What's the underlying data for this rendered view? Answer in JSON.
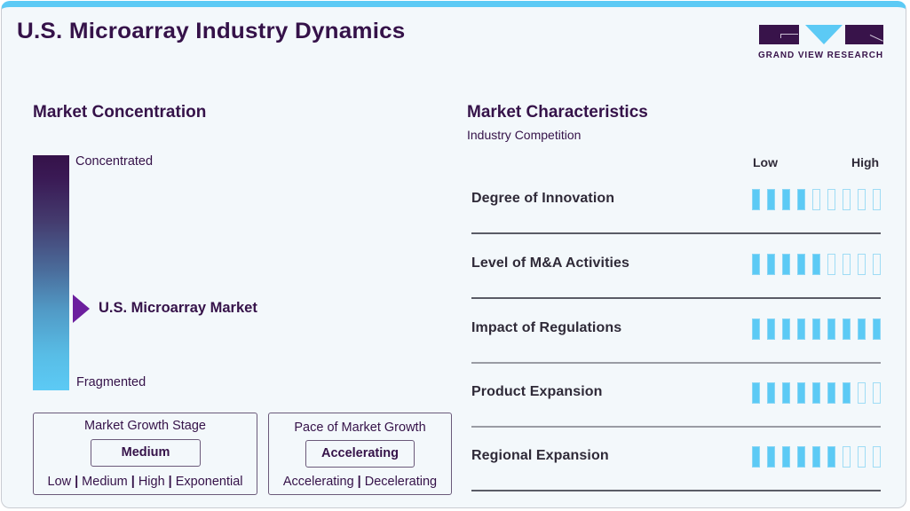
{
  "header": {
    "title": "U.S. Microarray Industry Dynamics",
    "logo_text": "GRAND VIEW RESEARCH"
  },
  "concentration": {
    "title": "Market Concentration",
    "top_label": "Concentrated",
    "bottom_label": "Fragmented",
    "marker_label": "U.S. Microarray Market",
    "marker_position_pct": 65
  },
  "growth_stage": {
    "title": "Market Growth Stage",
    "value": "Medium",
    "options": [
      "Low",
      "Medium",
      "High",
      "Exponential"
    ]
  },
  "growth_pace": {
    "title": "Pace of Market Growth",
    "value": "Accelerating",
    "options": [
      "Accelerating",
      "Decelerating"
    ]
  },
  "characteristics": {
    "title": "Market Characteristics",
    "subtitle": "Industry Competition",
    "scale_low": "Low",
    "scale_high": "High",
    "max_level": 9,
    "rows": [
      {
        "label": "Degree of Innovation",
        "level": 4
      },
      {
        "label": "Level of M&A Activities",
        "level": 5
      },
      {
        "label": "Impact of Regulations",
        "level": 9
      },
      {
        "label": "Product Expansion",
        "level": 7
      },
      {
        "label": "Regional Expansion",
        "level": 6
      }
    ]
  },
  "colors": {
    "primary_dark": "#351249",
    "accent_blue": "#5ccaf5",
    "marker_purple": "#6c1f9e",
    "background": "#f3f8fb"
  }
}
